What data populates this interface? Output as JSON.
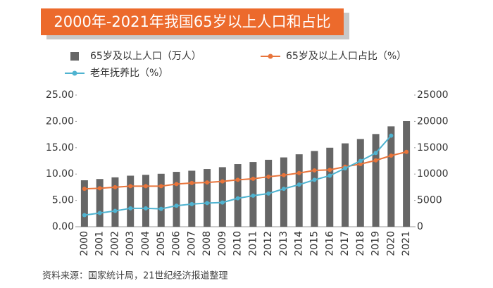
{
  "chart_data": {
    "type": "bar_line",
    "title": "2000年-2021年我国65岁以上人口和占比",
    "source": "资料来源：国家统计局，21世纪经济报道整理",
    "categories": [
      "2000",
      "2001",
      "2002",
      "2003",
      "2004",
      "2005",
      "2006",
      "2007",
      "2008",
      "2009",
      "2010",
      "2011",
      "2012",
      "2013",
      "2014",
      "2015",
      "2016",
      "2017",
      "2018",
      "2019",
      "2020",
      "2021"
    ],
    "series": [
      {
        "name": "65岁及以上人口（万人）",
        "type": "bar",
        "axis": "y2",
        "color": "#666666",
        "values": [
          8821,
          9062,
          9377,
          9692,
          9857,
          10055,
          10419,
          10636,
          10956,
          11307,
          11894,
          12288,
          12714,
          13161,
          13755,
          14386,
          15003,
          15831,
          16658,
          17603,
          19064,
          20056
        ]
      },
      {
        "name": "65岁及以上人口占比（%）",
        "type": "line",
        "color": "#e8743b",
        "values": [
          7.2,
          7.3,
          7.5,
          7.7,
          7.7,
          7.7,
          8.1,
          8.3,
          8.4,
          8.6,
          8.9,
          9.1,
          9.5,
          9.8,
          10.2,
          10.7,
          10.8,
          11.4,
          11.9,
          12.6,
          13.5,
          14.2
        ]
      },
      {
        "name": "老年抚养比（%）",
        "type": "line",
        "color": "#4fb3d0",
        "values": [
          2.2,
          2.6,
          3.0,
          3.5,
          3.5,
          3.4,
          4.0,
          4.3,
          4.5,
          4.6,
          5.4,
          5.9,
          6.3,
          7.2,
          8.0,
          8.9,
          9.7,
          11.1,
          12.5,
          14.0,
          17.3,
          null
        ]
      }
    ],
    "ylim": [
      0,
      25
    ],
    "yticks": [
      {
        "value": 0,
        "label": "0.00"
      },
      {
        "value": 5,
        "label": "5.00"
      },
      {
        "value": 10,
        "label": "10.00"
      },
      {
        "value": 15,
        "label": "15.00"
      },
      {
        "value": 20,
        "label": "20.00"
      },
      {
        "value": 25,
        "label": "25.00"
      }
    ],
    "y2lim": [
      0,
      25000
    ],
    "y2ticks": [
      0,
      5000,
      10000,
      15000,
      20000,
      25000
    ]
  }
}
